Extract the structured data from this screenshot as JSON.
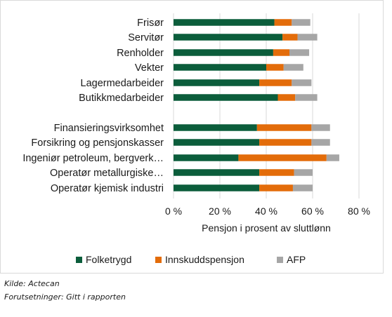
{
  "chart_data": {
    "type": "bar",
    "orientation": "horizontal",
    "stacked": true,
    "title": "",
    "xlabel": "Pensjon i prosent av sluttlønn",
    "ylabel": "",
    "xlim": [
      0,
      80
    ],
    "x_ticks": [
      0,
      20,
      40,
      60,
      80
    ],
    "x_tick_labels": [
      "0 %",
      "20 %",
      "40 %",
      "60 %",
      "80 %"
    ],
    "grid": "vertical",
    "legend_position": "bottom",
    "groups": [
      [
        "Frisør",
        "Servitør",
        "Renholder",
        "Vekter",
        "Lagermedarbeider",
        "Butikkmedarbeider"
      ],
      [
        "Finansieringsvirksomhet",
        "Forsikring og pensjonskasser",
        "Ingeniør petroleum, bergverk…",
        "Operatør metallurgiske…",
        "Operatør kjemisk industri"
      ]
    ],
    "categories": [
      "Frisør",
      "Servitør",
      "Renholder",
      "Vekter",
      "Lagermedarbeider",
      "Butikkmedarbeider",
      "Finansieringsvirksomhet",
      "Forsikring og pensjonskasser",
      "Ingeniør petroleum, bergverk…",
      "Operatør metallurgiske…",
      "Operatør kjemisk industri"
    ],
    "series": [
      {
        "name": "Folketrygd",
        "color": "#0b5d3b",
        "values": [
          43.5,
          47,
          43,
          40,
          37,
          45,
          36,
          37,
          28,
          37,
          37
        ]
      },
      {
        "name": "Innskuddspensjon",
        "color": "#e36c0a",
        "values": [
          7.5,
          6.5,
          7,
          7.5,
          14,
          7.5,
          23.5,
          22.5,
          38,
          15,
          14.5
        ]
      },
      {
        "name": "AFP",
        "color": "#a6a6a6",
        "values": [
          8,
          8.5,
          8.5,
          8.5,
          8.5,
          9.5,
          8,
          8,
          5.5,
          8,
          8.5
        ]
      }
    ]
  },
  "notes": {
    "source": "Kilde: Actecan",
    "assumptions": "Forutsetninger: Gitt i rapporten"
  }
}
